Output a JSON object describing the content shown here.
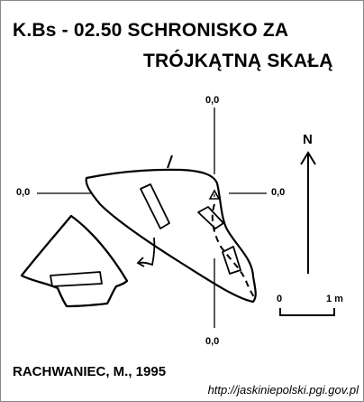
{
  "title": {
    "line1": "K.Bs - 02.50  SCHRONISKO ZA",
    "line2": "TRÓJKĄTNĄ SKAŁĄ"
  },
  "coordinates": {
    "top": "0,0",
    "left": "0,0",
    "right": "0,0",
    "bottom": "0,0"
  },
  "north_label": "N",
  "scale": {
    "start": "0",
    "end": "1 m"
  },
  "author": "RACHWANIEC, M., 1995",
  "source_url": "http://jaskiniepolski.pgi.gov.pl"
}
